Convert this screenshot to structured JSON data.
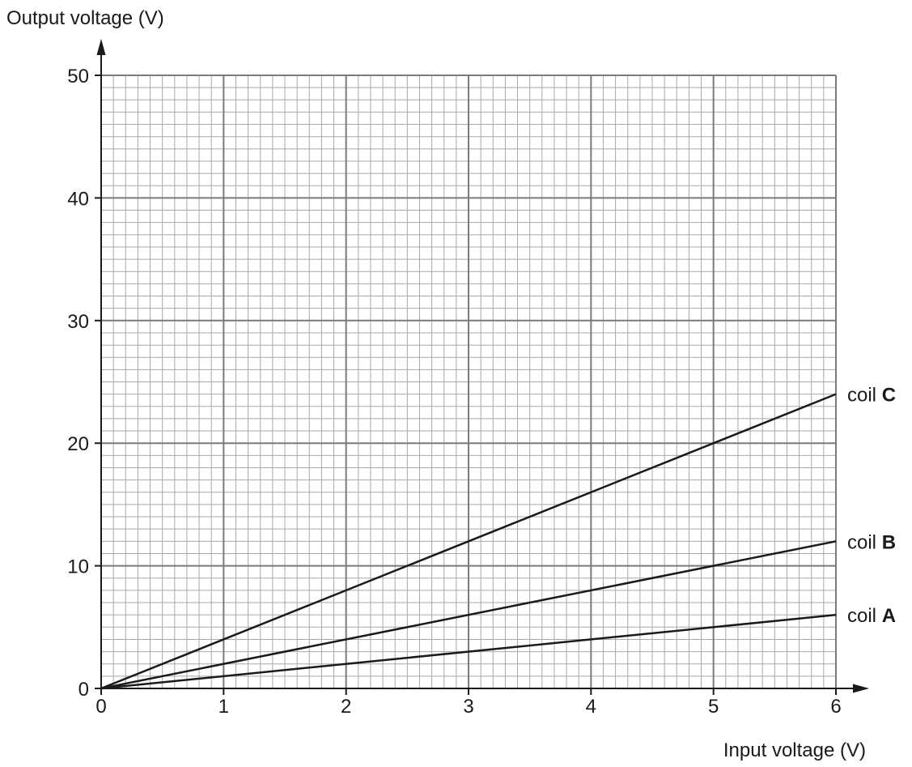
{
  "chart_data": {
    "type": "line",
    "xlabel": "Input voltage (V)",
    "ylabel": "Output voltage (V)",
    "xlim": [
      0,
      6
    ],
    "ylim": [
      0,
      50
    ],
    "x_ticks": [
      0,
      1,
      2,
      3,
      4,
      5,
      6
    ],
    "y_ticks": [
      0,
      10,
      20,
      30,
      40,
      50
    ],
    "minor_grid_step": {
      "x": 0.1,
      "y": 1
    },
    "major_grid_step": {
      "x": 1,
      "y": 10
    },
    "grid": true,
    "series": [
      {
        "name": "coil A",
        "prefix": "coil ",
        "letter": "A",
        "x": [
          0,
          6
        ],
        "y": [
          0,
          6
        ]
      },
      {
        "name": "coil B",
        "prefix": "coil ",
        "letter": "B",
        "x": [
          0,
          6
        ],
        "y": [
          0,
          12
        ]
      },
      {
        "name": "coil C",
        "prefix": "coil ",
        "letter": "C",
        "x": [
          0,
          6
        ],
        "y": [
          0,
          24
        ]
      }
    ],
    "colors": {
      "line": "#1a1a1a",
      "minor_grid": "#a8a8a8",
      "major_grid": "#7a7a7a"
    }
  }
}
